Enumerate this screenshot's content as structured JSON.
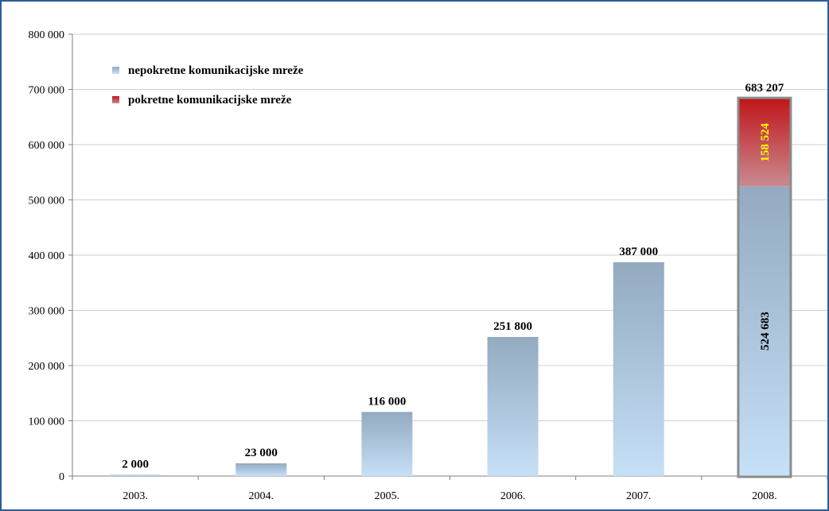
{
  "chart_data": {
    "type": "bar",
    "stacked": true,
    "categories": [
      "2003.",
      "2004.",
      "2005.",
      "2006.",
      "2007.",
      "2008."
    ],
    "series": [
      {
        "name": "nepokretne komunikacijske mreže",
        "values": [
          2000,
          23000,
          116000,
          251800,
          387000,
          524683
        ],
        "value_labels": [
          "2 000",
          "23 000",
          "116 000",
          "251 800",
          "387 000",
          "524 683"
        ],
        "color_top": "#93aac0",
        "color_bottom": "#c6e0f7"
      },
      {
        "name": "pokretne komunikacijske mreže",
        "values": [
          0,
          0,
          0,
          0,
          0,
          158524
        ],
        "value_labels": [
          "",
          "",
          "",
          "",
          "",
          "158 524"
        ],
        "color_top": "#c0161a",
        "color_bottom": "#c98a90",
        "label_color": "#ffff00"
      }
    ],
    "total_labels": [
      "2 000",
      "23 000",
      "116 000",
      "251 800",
      "387 000",
      "683 207"
    ],
    "yticks": [
      0,
      100000,
      200000,
      300000,
      400000,
      500000,
      600000,
      700000,
      800000
    ],
    "ytick_labels": [
      "0",
      "100 000",
      "200 000",
      "300 000",
      "400 000",
      "500 000",
      "600 000",
      "700 000",
      "800 000"
    ],
    "ylim": [
      0,
      800000
    ],
    "grid": true,
    "legend_position": "top-left",
    "highlighted_category": "2008.",
    "title": "",
    "xlabel": "",
    "ylabel": ""
  }
}
